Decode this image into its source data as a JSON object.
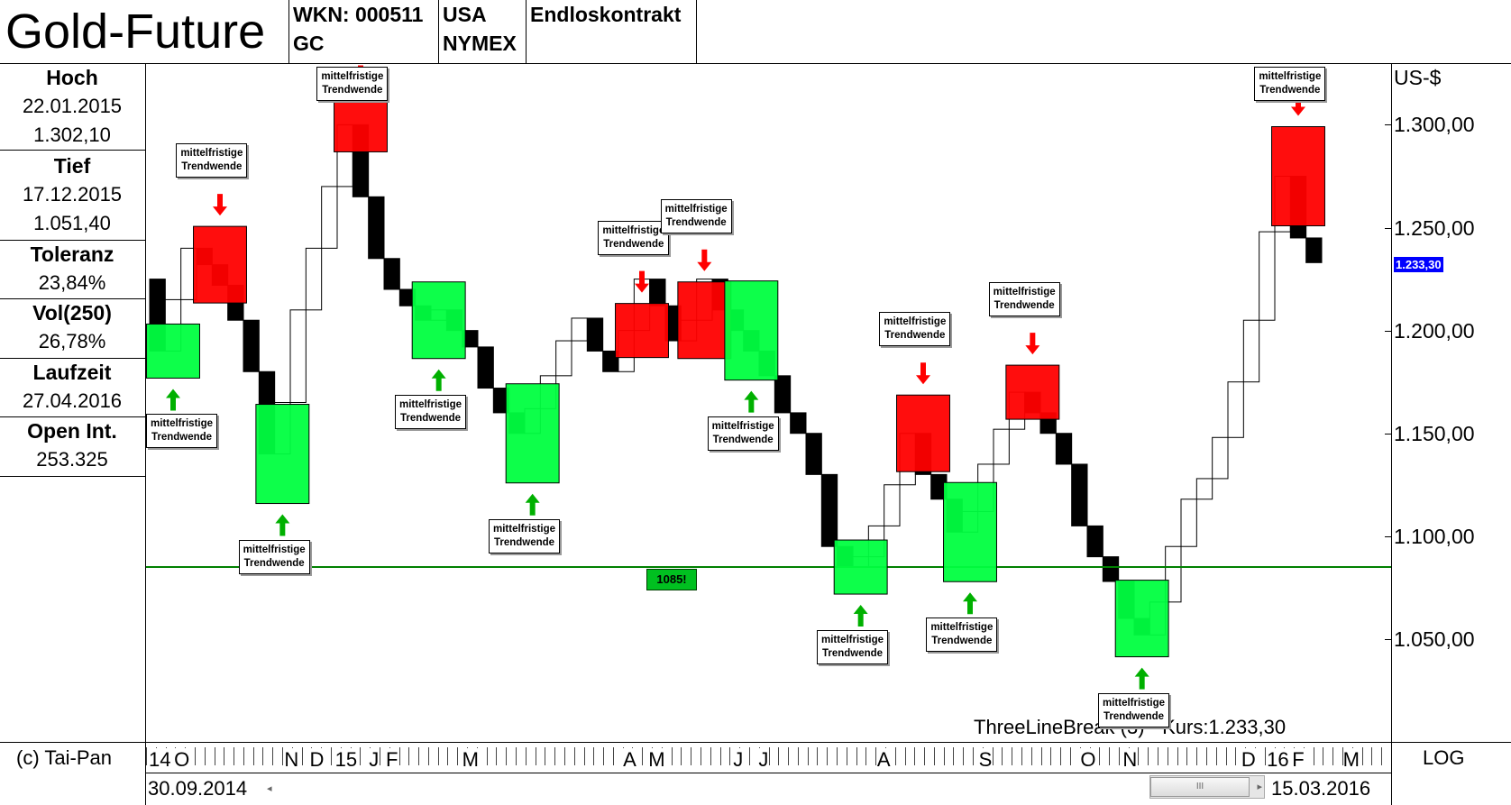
{
  "header": {
    "title": "Gold-Future",
    "wkn_line1": "WKN: 000511",
    "wkn_line2": "GC",
    "exchange_line1": "USA",
    "exchange_line2": "NYMEX",
    "contract": "Endloskontrakt"
  },
  "sidebar": {
    "items": [
      {
        "label": "Hoch",
        "values": [
          "22.01.2015",
          "1.302,10"
        ]
      },
      {
        "label": "Tief",
        "values": [
          "17.12.2015",
          "1.051,40"
        ]
      },
      {
        "label": "Toleranz",
        "values": [
          "23,84%"
        ]
      },
      {
        "label": "Vol(250)",
        "values": [
          "26,78%"
        ]
      },
      {
        "label": "Laufzeit",
        "values": [
          "27.04.2016"
        ]
      },
      {
        "label": "Open Int.",
        "values": [
          "253.325"
        ]
      }
    ]
  },
  "footer": {
    "copyright": "(c) Tai-Pan",
    "start_date": "30.09.2014",
    "end_date": "15.03.2016",
    "log_label": "LOG",
    "scroll_grip": "III",
    "scroll_left": "◂",
    "scroll_right": "▸"
  },
  "colors": {
    "up_box": "#00ff40",
    "down_box": "#ff0000",
    "support_line": "#008000",
    "arrow_up": "#00b000",
    "arrow_down": "#ff0000",
    "price_tag_bg": "#0000ff"
  },
  "chart_data": {
    "type": "line",
    "subtype": "three-line-break",
    "caption": "ThreeLineBreak (3) - Kurs:1.233,30",
    "y_unit": "US-$",
    "ylim": [
      1000,
      1330
    ],
    "y_ticks": [
      "1.300,00",
      "1.250,00",
      "1.200,00",
      "1.150,00",
      "1.100,00",
      "1.050,00"
    ],
    "y_tick_values": [
      1300,
      1250,
      1200,
      1150,
      1100,
      1050
    ],
    "current_price_label": "1.233,30",
    "current_price": 1233.3,
    "support_level": 1085,
    "support_label": "1085!",
    "month_labels": [
      "14",
      "O",
      "N",
      "D",
      "15",
      "J",
      "F",
      "M",
      "A",
      "M",
      "J",
      "J",
      "A",
      "S",
      "O",
      "N",
      "D",
      "16",
      "F",
      "M"
    ],
    "trend_reversals": [
      {
        "label": "mittelfristige\nTrendwende",
        "direction": "up",
        "level": 1210
      },
      {
        "label": "mittelfristige\nTrendwende",
        "direction": "down",
        "level": 1243
      },
      {
        "label": "mittelfristige\nTrendwende",
        "direction": "up",
        "level": 1170
      },
      {
        "label": "mittelfristige\nTrendwende",
        "direction": "down",
        "level": 1295
      },
      {
        "label": "mittelfristige\nTrendwende",
        "direction": "up",
        "level": 1205
      },
      {
        "label": "mittelfristige\nTrendwende",
        "direction": "up",
        "level": 1160
      },
      {
        "label": "mittelfristige\nTrendwende",
        "direction": "down",
        "level": 1218
      },
      {
        "label": "mittelfristige\nTrendwende",
        "direction": "down",
        "level": 1220
      },
      {
        "label": "mittelfristige\nTrendwende",
        "direction": "up",
        "level": 1180
      },
      {
        "label": "mittelfristige\nTrendwende",
        "direction": "up",
        "level": 1085
      },
      {
        "label": "mittelfristige\nTrendwende",
        "direction": "down",
        "level": 1155
      },
      {
        "label": "mittelfristige\nTrendwende",
        "direction": "up",
        "level": 1105
      },
      {
        "label": "mittelfristige\nTrendwende",
        "direction": "down",
        "level": 1180
      },
      {
        "label": "mittelfristige\nTrendwende",
        "direction": "up",
        "level": 1055
      },
      {
        "label": "mittelfristige\nTrendwende",
        "direction": "down",
        "level": 1270
      }
    ],
    "price_path": [
      1225,
      1190,
      1215,
      1240,
      1232,
      1222,
      1205,
      1180,
      1140,
      1165,
      1210,
      1240,
      1270,
      1300,
      1265,
      1235,
      1220,
      1212,
      1205,
      1210,
      1200,
      1192,
      1172,
      1160,
      1150,
      1162,
      1178,
      1195,
      1206,
      1190,
      1180,
      1200,
      1225,
      1212,
      1195,
      1205,
      1225,
      1210,
      1200,
      1190,
      1178,
      1160,
      1150,
      1130,
      1095,
      1085,
      1090,
      1105,
      1125,
      1150,
      1130,
      1118,
      1102,
      1112,
      1135,
      1152,
      1170,
      1160,
      1150,
      1135,
      1105,
      1090,
      1078,
      1060,
      1052,
      1068,
      1095,
      1118,
      1128,
      1148,
      1175,
      1205,
      1248,
      1275,
      1245,
      1233
    ]
  }
}
